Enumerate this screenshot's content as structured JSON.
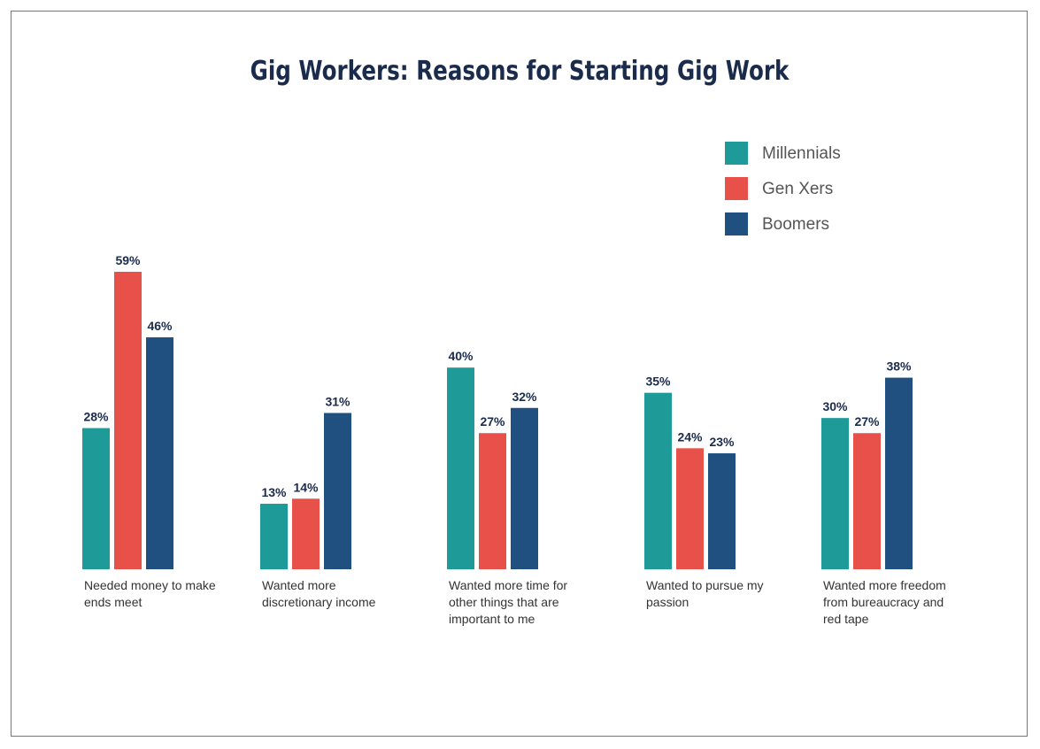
{
  "chart_data": {
    "type": "bar",
    "title": "Gig Workers: Reasons for Starting Gig Work",
    "categories": [
      "Needed money to make ends meet",
      "Wanted more discretionary income",
      "Wanted more time for other things that are important to me",
      "Wanted to pursue my passion",
      "Wanted more freedom from bureaucracy and red tape"
    ],
    "series": [
      {
        "name": "Millennials",
        "color": "#1e9a98",
        "values": [
          28,
          13,
          40,
          35,
          30
        ],
        "value_labels": [
          "28%",
          "13%",
          "40%",
          "35%",
          "30%"
        ]
      },
      {
        "name": "Gen Xers",
        "color": "#e8514a",
        "values": [
          59,
          14,
          27,
          24,
          27
        ],
        "value_labels": [
          "59%",
          "14%",
          "27%",
          "24%",
          "27%"
        ]
      },
      {
        "name": "Boomers",
        "color": "#1f5080",
        "values": [
          46,
          31,
          32,
          23,
          38
        ],
        "value_labels": [
          "46%",
          "31%",
          "32%",
          "23%",
          "38%"
        ]
      }
    ],
    "legend": "top-right"
  }
}
